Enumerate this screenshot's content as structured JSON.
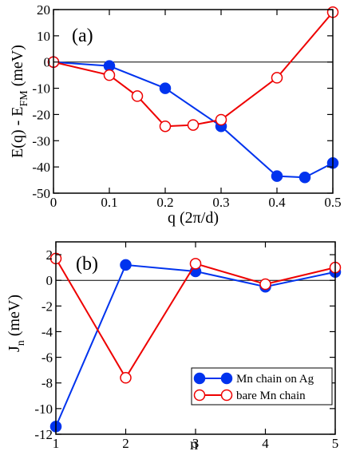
{
  "chart_data": [
    {
      "type": "line",
      "panel_label": "(a)",
      "xlabel": "q (2π/d)",
      "ylabel": "E(q) - E",
      "ylabel_subscript": "FM",
      "ylabel_suffix": " (meV)",
      "xlim": [
        0,
        0.5
      ],
      "ylim": [
        -50,
        20
      ],
      "xticks": [
        0,
        0.1,
        0.2,
        0.3,
        0.4,
        0.5
      ],
      "xtick_labels": [
        "0",
        "0.1",
        "0.2",
        "0.3",
        "0.4",
        "0.5"
      ],
      "yticks": [
        -50,
        -40,
        -30,
        -20,
        -10,
        0,
        10,
        20
      ],
      "ytick_labels": [
        "-50",
        "-40",
        "-30",
        "-20",
        "-10",
        "0",
        "10",
        "20"
      ],
      "zero_line": true,
      "series": [
        {
          "color": "#0033ee",
          "marker": "filled-circle",
          "x": [
            0,
            0.1,
            0.2,
            0.3,
            0.4,
            0.45,
            0.5
          ],
          "y": [
            0,
            -1.5,
            -10,
            -24.5,
            -43.5,
            -44,
            -38.5
          ]
        },
        {
          "color": "#ee0000",
          "marker": "open-circle",
          "x": [
            0,
            0.1,
            0.15,
            0.2,
            0.25,
            0.3,
            0.4,
            0.5
          ],
          "y": [
            0,
            -5,
            -13,
            -24.5,
            -24,
            -22,
            -6,
            19
          ]
        }
      ]
    },
    {
      "type": "line",
      "panel_label": "(b)",
      "xlabel": "n",
      "ylabel": "J",
      "ylabel_subscript": "n",
      "ylabel_suffix": " (meV)",
      "xlim": [
        1,
        5
      ],
      "ylim": [
        -12,
        3
      ],
      "xticks": [
        1,
        2,
        3,
        4,
        5
      ],
      "xtick_labels": [
        "1",
        "2",
        "3",
        "4",
        "5"
      ],
      "yticks": [
        -12,
        -10,
        -8,
        -6,
        -4,
        -2,
        0,
        2
      ],
      "ytick_labels": [
        "-12",
        "-10",
        "-8",
        "-6",
        "-4",
        "-2",
        "0",
        "2"
      ],
      "zero_line": true,
      "legend_position": "bottom-right",
      "series": [
        {
          "name": "Mn chain on Ag",
          "color": "#0033ee",
          "marker": "filled-circle",
          "x": [
            1,
            2,
            3,
            4,
            5
          ],
          "y": [
            -11.4,
            1.2,
            0.7,
            -0.5,
            0.65
          ]
        },
        {
          "name": "bare Mn chain",
          "color": "#ee0000",
          "marker": "open-circle",
          "x": [
            1,
            2,
            3,
            4,
            5
          ],
          "y": [
            1.7,
            -7.6,
            1.3,
            -0.3,
            1.0
          ]
        }
      ]
    }
  ]
}
